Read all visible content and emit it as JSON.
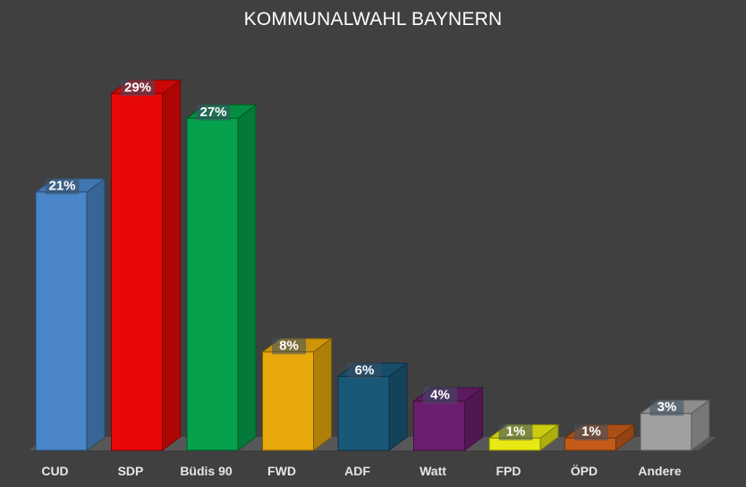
{
  "chart_data": {
    "type": "bar",
    "title": "KOMMUNALWAHL BAYNERN",
    "xlabel": "",
    "ylabel": "",
    "ylim": [
      0,
      30
    ],
    "categories": [
      "CUD",
      "SDP",
      "Büdis 90",
      "FWD",
      "ADF",
      "Watt",
      "FPD",
      "ÖPD",
      "Andere"
    ],
    "values": [
      21,
      29,
      27,
      8,
      6,
      4,
      1,
      1,
      3
    ],
    "value_labels": [
      "21%",
      "29%",
      "27%",
      "8%",
      "6%",
      "4%",
      "1%",
      "1%",
      "3%"
    ],
    "colors": [
      "#4a86c8",
      "#e80808",
      "#05a14c",
      "#e8a90c",
      "#1a5878",
      "#6b1e6e",
      "#e8e812",
      "#c45a18",
      "#a0a0a0"
    ],
    "grid": false,
    "legend": "none",
    "style": "3d"
  }
}
